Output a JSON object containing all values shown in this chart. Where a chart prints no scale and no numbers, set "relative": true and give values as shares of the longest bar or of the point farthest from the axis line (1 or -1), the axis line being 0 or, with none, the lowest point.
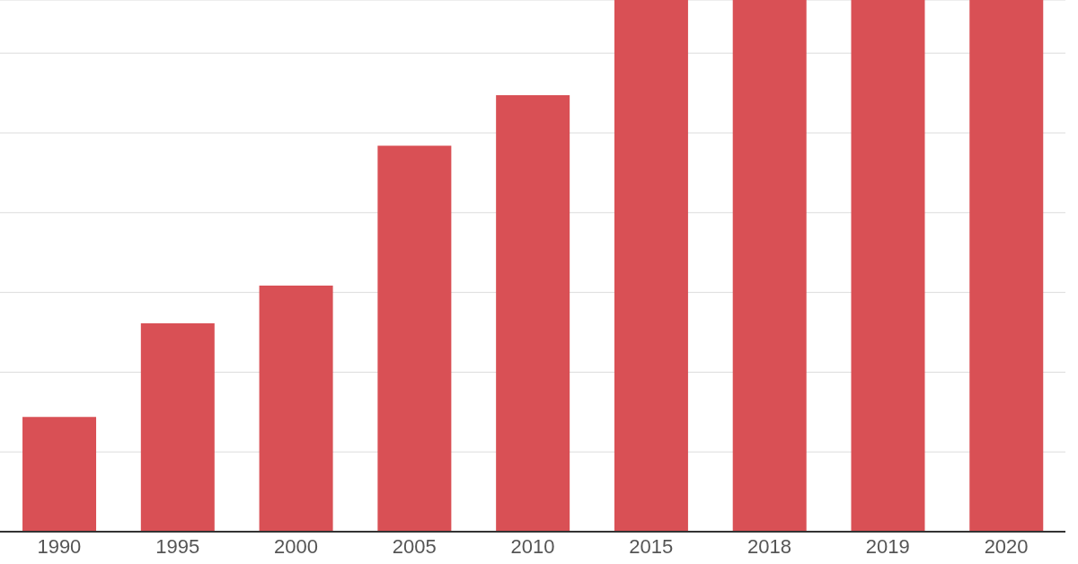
{
  "chart_data": {
    "type": "bar",
    "relative": true,
    "categories": [
      "1990",
      "1995",
      "2000",
      "2005",
      "2010",
      "2015",
      "2018",
      "2019",
      "2020"
    ],
    "values": [
      0.216,
      0.392,
      0.463,
      0.726,
      0.821,
      1,
      1,
      1,
      1
    ],
    "color": "#d95055",
    "grid": "y"
  }
}
